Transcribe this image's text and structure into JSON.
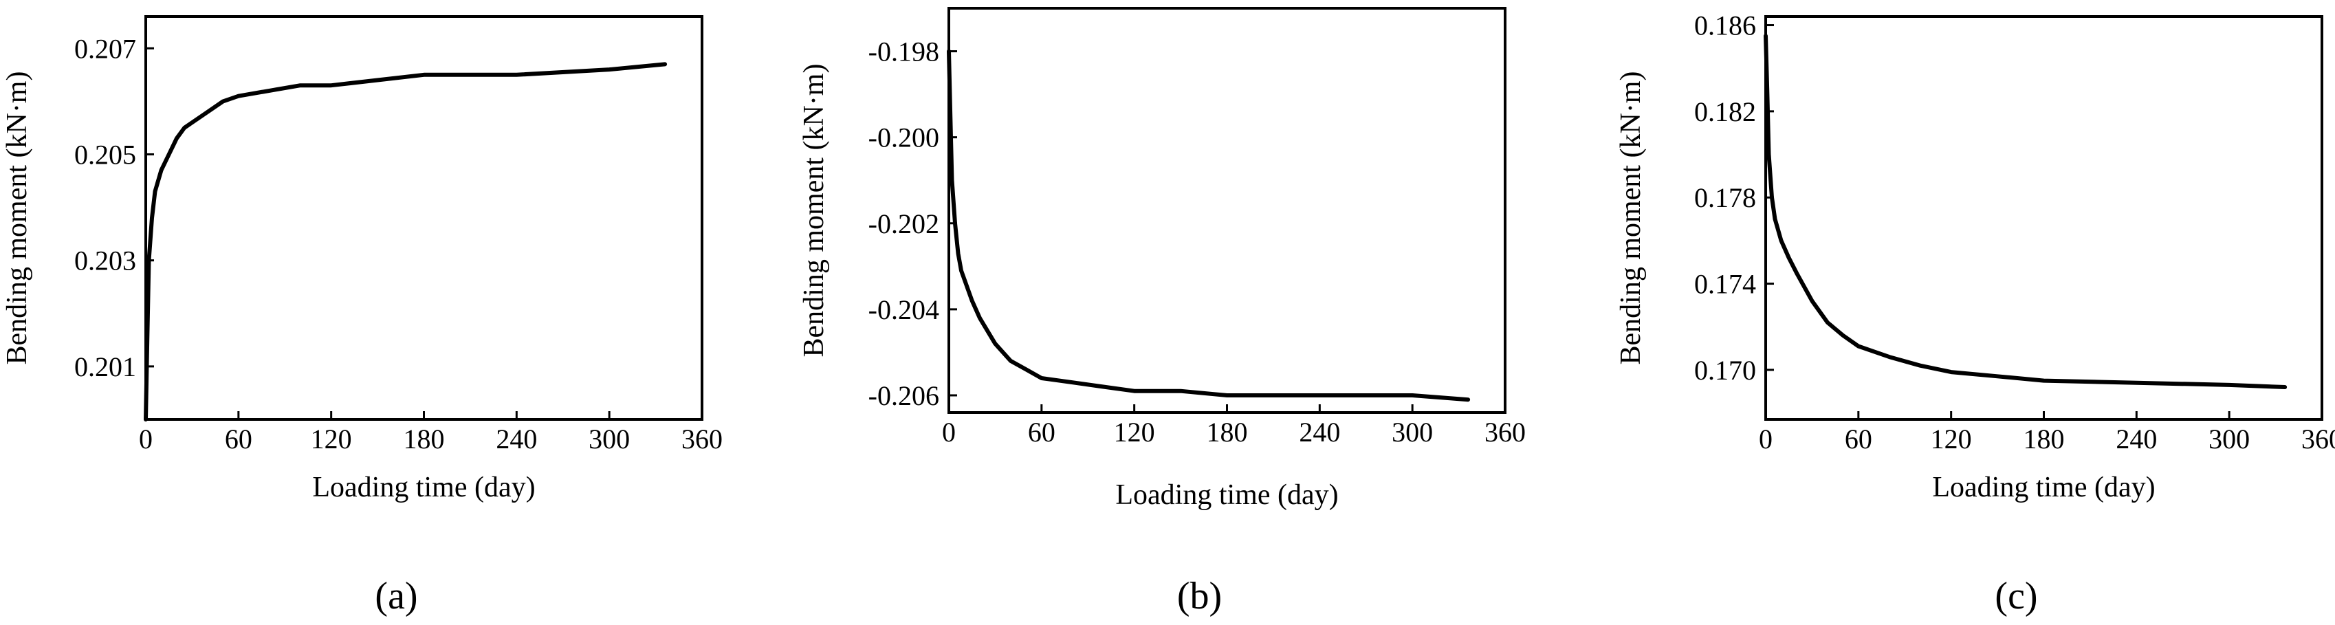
{
  "chart_data": [
    {
      "type": "line",
      "panel_label": "(a)",
      "xlabel": "Loading time (day)",
      "ylabel": "Bending moment (kN·m)",
      "xlim": [
        0,
        360
      ],
      "ylim": [
        0.2,
        0.2076
      ],
      "xticks": [
        "0",
        "60",
        "120",
        "180",
        "240",
        "300",
        "360"
      ],
      "yticks": [
        "0.201",
        "0.203",
        "0.205",
        "0.207"
      ],
      "grid": false,
      "legend": "none",
      "series": [
        {
          "x": [
            0,
            1,
            2,
            4,
            6,
            10,
            15,
            20,
            25,
            30,
            40,
            50,
            60,
            80,
            100,
            120,
            150,
            180,
            240,
            300,
            336
          ],
          "y": [
            0.2,
            0.2015,
            0.203,
            0.2038,
            0.2043,
            0.2047,
            0.205,
            0.2053,
            0.2055,
            0.2056,
            0.2058,
            0.206,
            0.2061,
            0.2062,
            0.2063,
            0.2063,
            0.2064,
            0.2065,
            0.2065,
            0.2066,
            0.2067
          ]
        }
      ]
    },
    {
      "type": "line",
      "panel_label": "(b)",
      "xlabel": "Loading time (day)",
      "ylabel": "Bending moment (kN·m)",
      "xlim": [
        0,
        360
      ],
      "ylim": [
        -0.2064,
        -0.197
      ],
      "xticks": [
        "0",
        "60",
        "120",
        "180",
        "240",
        "300",
        "360"
      ],
      "yticks": [
        "-0.198",
        "-0.200",
        "-0.202",
        "-0.204",
        "-0.206"
      ],
      "grid": false,
      "legend": "none",
      "series": [
        {
          "x": [
            0,
            1,
            2,
            4,
            6,
            8,
            10,
            15,
            20,
            30,
            40,
            50,
            60,
            80,
            100,
            120,
            150,
            180,
            240,
            300,
            336
          ],
          "y": [
            -0.198,
            -0.1995,
            -0.201,
            -0.202,
            -0.2027,
            -0.2031,
            -0.2033,
            -0.2038,
            -0.2042,
            -0.2048,
            -0.2052,
            -0.2054,
            -0.2056,
            -0.2057,
            -0.2058,
            -0.2059,
            -0.2059,
            -0.206,
            -0.206,
            -0.206,
            -0.2061
          ]
        }
      ]
    },
    {
      "type": "line",
      "panel_label": "(c)",
      "xlabel": "Loading time (day)",
      "ylabel": "Bending moment (kN·m)",
      "xlim": [
        0,
        360
      ],
      "ylim": [
        0.1677,
        0.1864
      ],
      "xticks": [
        "0",
        "60",
        "120",
        "180",
        "240",
        "300",
        "360"
      ],
      "yticks": [
        "0.170",
        "0.174",
        "0.178",
        "0.182",
        "0.186"
      ],
      "grid": false,
      "legend": "none",
      "series": [
        {
          "x": [
            0,
            1,
            2,
            4,
            6,
            8,
            10,
            15,
            20,
            30,
            40,
            50,
            60,
            80,
            100,
            120,
            150,
            180,
            240,
            300,
            336
          ],
          "y": [
            0.1855,
            0.183,
            0.18,
            0.178,
            0.177,
            0.1765,
            0.176,
            0.1752,
            0.1745,
            0.1732,
            0.1722,
            0.1716,
            0.1711,
            0.1706,
            0.1702,
            0.1699,
            0.1697,
            0.1695,
            0.1694,
            0.1693,
            0.1692
          ]
        }
      ]
    }
  ]
}
